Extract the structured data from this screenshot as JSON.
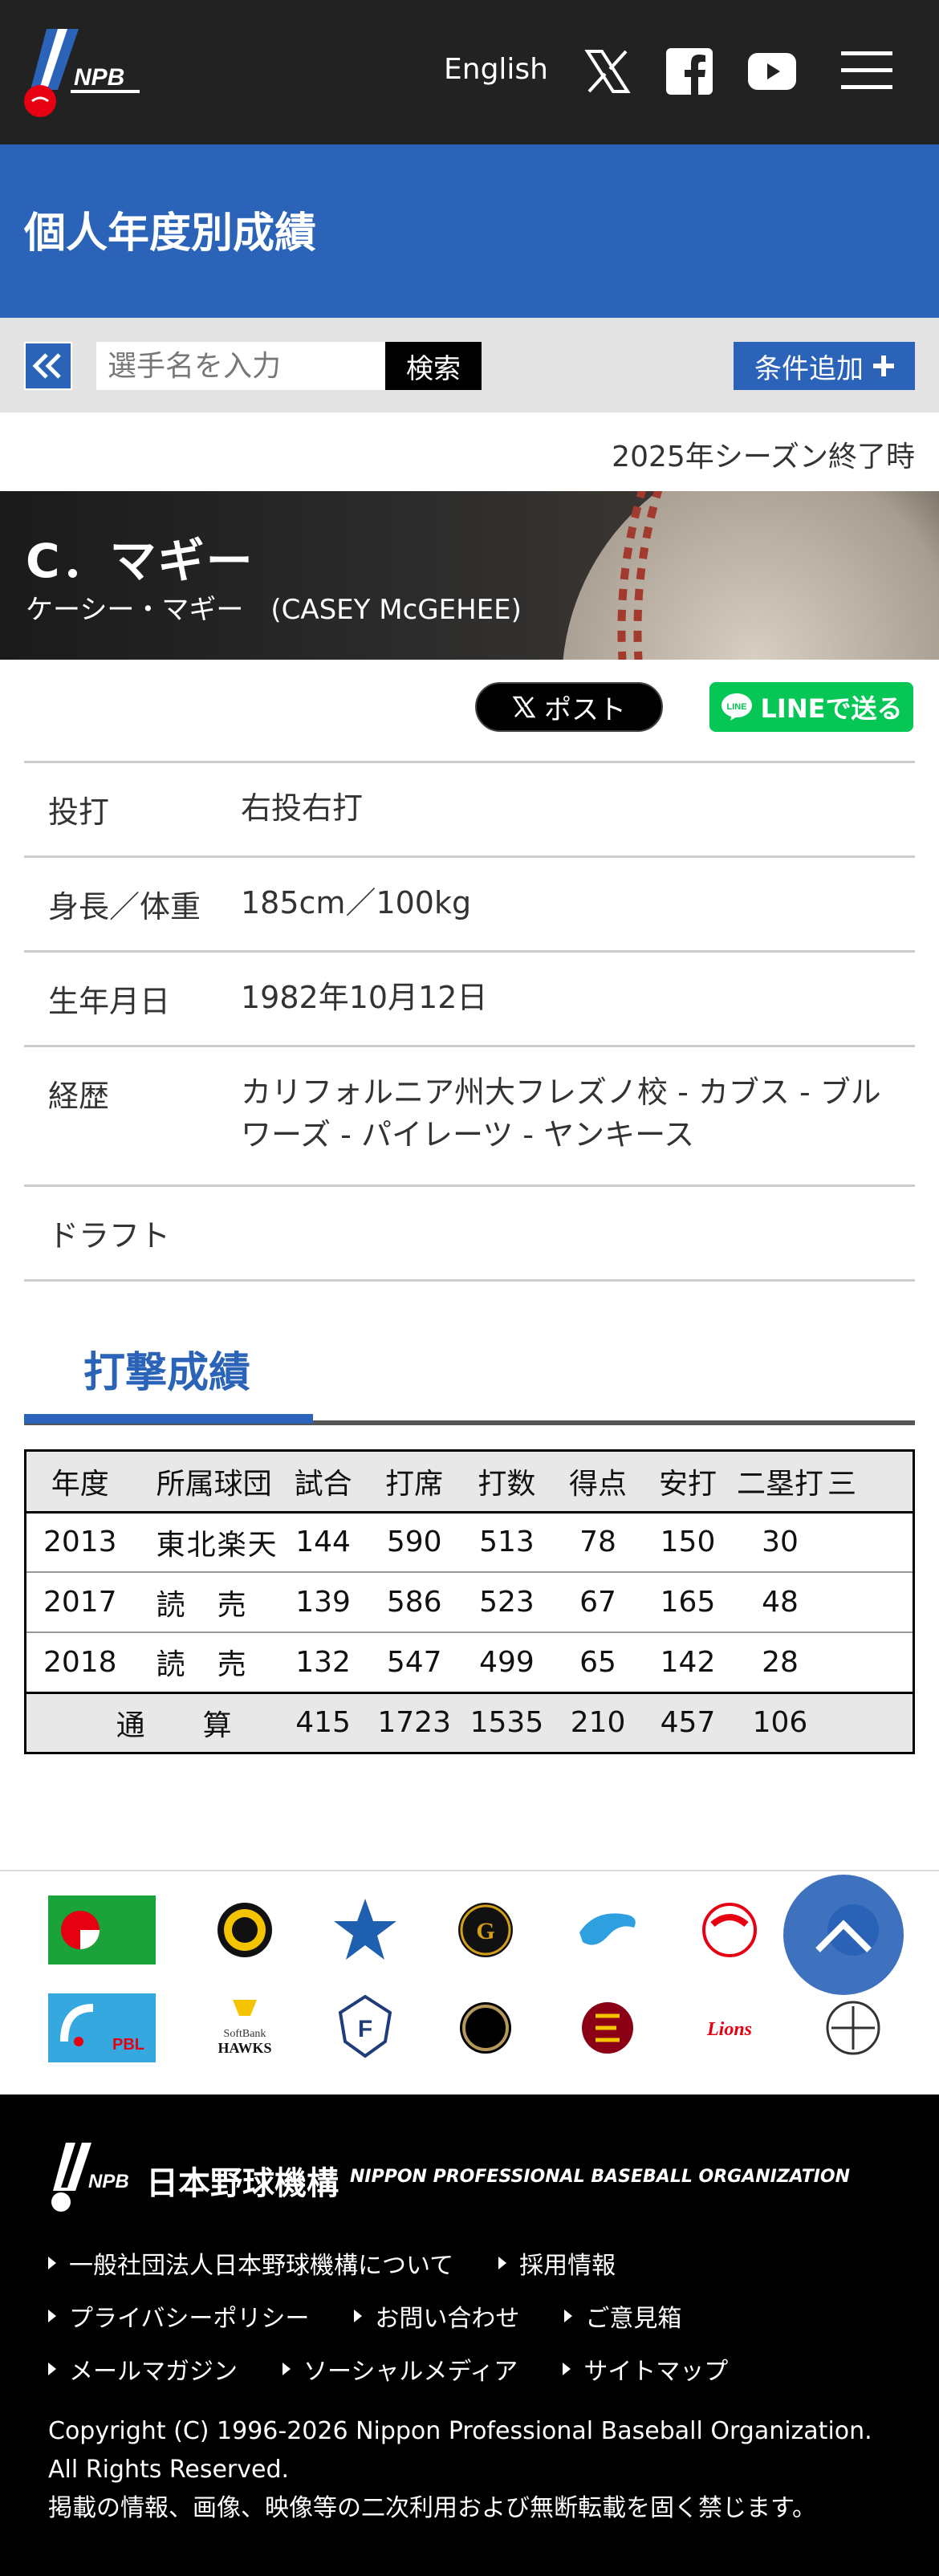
{
  "header": {
    "language_link": "English",
    "logo_text": "NPB"
  },
  "title_band": {
    "title": "個人年度別成績"
  },
  "search": {
    "placeholder": "選手名を入力",
    "search_label": "検索",
    "add_condition_label": "条件追加"
  },
  "season_note": "2025年シーズン終了時",
  "player": {
    "name": "C．マギー",
    "full_name": "ケーシー・マギー　(CASEY McGEHEE)"
  },
  "share": {
    "post_label": "ポスト",
    "line_label": "LINEで送る"
  },
  "profile": [
    {
      "label": "投打",
      "value": "右投右打"
    },
    {
      "label": "身長／体重",
      "value": "185cm／100kg"
    },
    {
      "label": "生年月日",
      "value": "1982年10月12日"
    },
    {
      "label": "経歴",
      "value": "カリフォルニア州大フレズノ校 - カブス - ブルワーズ - パイレーツ - ヤンキース"
    },
    {
      "label": "ドラフト",
      "value": ""
    }
  ],
  "batting": {
    "section_title": "打撃成績",
    "headers": [
      "年度",
      "所属球団",
      "試合",
      "打席",
      "打数",
      "得点",
      "安打",
      "二塁打",
      "三"
    ],
    "rows": [
      [
        "2013",
        "東北楽天",
        "144",
        "590",
        "513",
        "78",
        "150",
        "30",
        ""
      ],
      [
        "2017",
        "読　売",
        "139",
        "586",
        "523",
        "67",
        "165",
        "48",
        ""
      ],
      [
        "2018",
        "読　売",
        "132",
        "547",
        "499",
        "65",
        "142",
        "28",
        ""
      ]
    ],
    "total": [
      "通　算",
      "415",
      "1723",
      "1535",
      "210",
      "457",
      "106",
      ""
    ]
  },
  "footer": {
    "org_name_jp": "日本野球機構",
    "org_name_en": "NIPPON PROFESSIONAL BASEBALL ORGANIZATION",
    "links_row1": [
      "一般社団法人日本野球機構について",
      "採用情報"
    ],
    "links_row2": [
      "プライバシーポリシー",
      "お問い合わせ",
      "ご意見箱"
    ],
    "links_row3": [
      "メールマガジン",
      "ソーシャルメディア",
      "サイトマップ"
    ],
    "copyright1": "Copyright (C) 1996-2026 Nippon Professional Baseball Organization.",
    "copyright2": "All Rights Reserved.",
    "copyright3": "掲載の情報、画像、映像等の二次利用および無断転載を固く禁じます。"
  },
  "colors": {
    "accent": "#2a63b7",
    "header_bg": "#222222",
    "footer_bg": "#000000",
    "line_green": "#06c755"
  }
}
